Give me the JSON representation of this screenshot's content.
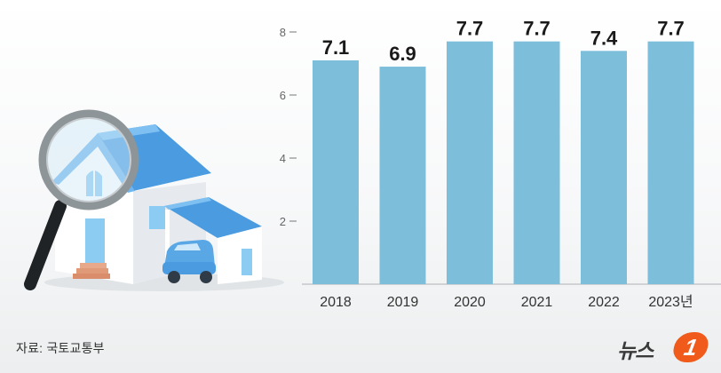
{
  "chart_data": {
    "type": "bar",
    "categories": [
      "2018",
      "2019",
      "2020",
      "2021",
      "2022",
      "2023년"
    ],
    "values": [
      7.1,
      6.9,
      7.7,
      7.7,
      7.4,
      7.7
    ],
    "value_labels": [
      "7.1",
      "6.9",
      "7.7",
      "7.7",
      "7.4",
      "7.7"
    ],
    "yticks": [
      "2",
      "4",
      "6",
      "8"
    ],
    "ylim": [
      0,
      8
    ],
    "grid": false,
    "bar_color": "#7dbfdb"
  },
  "source": "자료: 국토교통부",
  "logo": {
    "text": "뉴스",
    "badge": "1"
  },
  "colors": {
    "bar": "#7dbfdb",
    "roof": "#4a9be0",
    "accent": "#f05a1a"
  },
  "illustration": {
    "icons": [
      "house-icon",
      "magnifying-glass-icon",
      "car-icon"
    ]
  }
}
